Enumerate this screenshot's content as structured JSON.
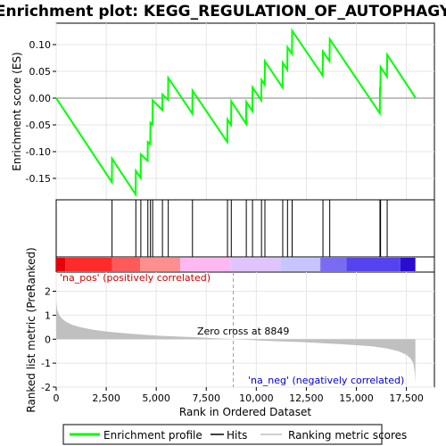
{
  "chart_data": {
    "type": "line",
    "title": "Enrichment plot: KEGG_REGULATION_OF_AUTOPHAGY",
    "top_panel": {
      "ylabel": "Enrichment score (ES)",
      "ylim": [
        -0.19,
        0.14
      ],
      "yticks": [
        0.1,
        0.05,
        0.0,
        -0.05,
        -0.1,
        -0.15
      ],
      "ytick_labels": [
        "0.10",
        "0.05",
        "0.00",
        "-0.05",
        "-0.10",
        "-0.15"
      ],
      "series": [
        {
          "name": "Enrichment profile",
          "color": "#00ff00",
          "x": [
            0,
            2780,
            2790,
            3970,
            3980,
            4220,
            4230,
            4570,
            4580,
            4700,
            4710,
            4810,
            4820,
            5300,
            5310,
            5590,
            5600,
            6800,
            6810,
            8550,
            8560,
            8740,
            8750,
            9490,
            9500,
            9800,
            9810,
            10250,
            10260,
            10420,
            10430,
            11310,
            11320,
            11550,
            11560,
            11780,
            11790,
            13320,
            13330,
            13660,
            13670,
            16170,
            16180,
            16200,
            16210,
            16530,
            16540,
            17950
          ],
          "y": [
            0.0,
            -0.157,
            -0.113,
            -0.18,
            -0.136,
            -0.149,
            -0.105,
            -0.117,
            -0.082,
            -0.086,
            -0.046,
            -0.049,
            -0.004,
            -0.022,
            0.007,
            -0.003,
            0.038,
            -0.029,
            0.014,
            -0.082,
            -0.04,
            -0.05,
            -0.006,
            -0.048,
            -0.007,
            -0.024,
            0.02,
            -0.004,
            0.034,
            0.025,
            0.069,
            0.02,
            0.066,
            0.053,
            0.095,
            0.083,
            0.126,
            0.042,
            0.087,
            0.069,
            0.11,
            -0.028,
            0.016,
            0.015,
            0.058,
            0.04,
            0.081,
            0.001
          ]
        }
      ]
    },
    "hits": {
      "name": "Hits",
      "positions": [
        2790,
        3980,
        4230,
        4580,
        4710,
        4820,
        5310,
        5600,
        6810,
        8560,
        8750,
        9500,
        9810,
        10260,
        10430,
        11320,
        11560,
        11790,
        13330,
        13670,
        16180,
        16210,
        16540
      ]
    },
    "color_band": {
      "colors": [
        "#e8000a",
        "#ff2a2a",
        "#ff5a5a",
        "#ff8f8f",
        "#ffb9f0",
        "#e0c4ff",
        "#c8c4ff",
        "#7a6cf2",
        "#5544ee",
        "#2c0ccf"
      ],
      "bounds": [
        0,
        450,
        2800,
        4200,
        6200,
        8700,
        11200,
        13200,
        14500,
        17200,
        17950
      ]
    },
    "bottom_panel": {
      "ylabel": "Ranked list metric (PreRanked)",
      "ylim": [
        -2.0,
        2.8
      ],
      "yticks": [
        2,
        1,
        0,
        -1,
        -2
      ],
      "ytick_labels": [
        "2",
        "1",
        "0",
        "-1",
        "-2"
      ],
      "series": [
        {
          "name": "Ranking metric scores",
          "color": "#c0c0c0",
          "x": [
            0,
            50,
            150,
            300,
            500,
            800,
            1200,
            1800,
            2500,
            3500,
            5000,
            7000,
            8849,
            10500,
            12500,
            14500,
            15800,
            16600,
            17100,
            17500,
            17700,
            17850,
            17920,
            17950
          ],
          "y": [
            1.6,
            1.25,
            1.0,
            0.85,
            0.72,
            0.6,
            0.5,
            0.4,
            0.32,
            0.24,
            0.15,
            0.08,
            0.0,
            -0.07,
            -0.13,
            -0.22,
            -0.3,
            -0.4,
            -0.5,
            -0.65,
            -0.8,
            -1.0,
            -1.4,
            -1.85
          ]
        }
      ],
      "label_pos": "'na_pos' (positively correlated)",
      "label_neg": "'na_neg' (negatively correlated)",
      "zero_cross_label": "Zero cross at 8849",
      "zero_cross": 8849
    },
    "xaxis": {
      "xlabel": "Rank in Ordered Dataset",
      "xlim": [
        0,
        18900
      ],
      "xticks": [
        0,
        2500,
        5000,
        7500,
        10000,
        12500,
        15000,
        17500
      ],
      "xtick_labels": [
        "0",
        "2,500",
        "5,000",
        "7,500",
        "10,000",
        "12,500",
        "15,000",
        "17,500"
      ]
    },
    "legend": {
      "placement": "bottom",
      "items": [
        {
          "label": "Enrichment profile",
          "color": "#00ff00",
          "kind": "thick-line"
        },
        {
          "label": "Hits",
          "color": "#000000",
          "kind": "line"
        },
        {
          "label": "Ranking metric scores",
          "color": "#c0c0c0",
          "kind": "line"
        }
      ]
    },
    "grid": true
  }
}
